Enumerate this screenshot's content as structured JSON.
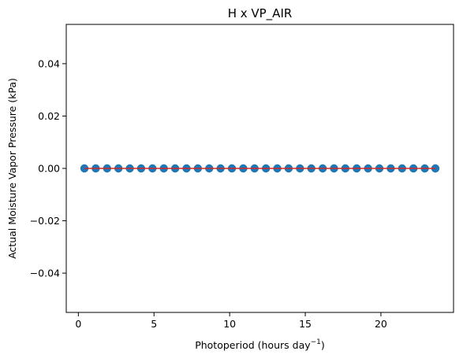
{
  "chart_data": {
    "type": "scatter",
    "title": "H x VP_AIR",
    "xlabel": "Photoperiod (hours day",
    "xlabel_superscript": "−1",
    "xlabel_suffix": ")",
    "ylabel": "Actual Moisture Vapor Pressure (kPa)",
    "xlim": [
      -0.8,
      24.8
    ],
    "ylim": [
      -0.055,
      0.055
    ],
    "x_ticks": [
      0,
      5,
      10,
      15,
      20
    ],
    "x_tick_labels": [
      "0",
      "5",
      "10",
      "15",
      "20"
    ],
    "y_ticks": [
      -0.04,
      -0.02,
      0.0,
      0.02,
      0.04
    ],
    "y_tick_labels": [
      "−0.04",
      "−0.02",
      "0.00",
      "0.02",
      "0.04"
    ],
    "grid": false,
    "series": [
      {
        "kind": "scatter",
        "x": [
          0.4,
          1.15,
          1.9,
          2.65,
          3.4,
          4.15,
          4.9,
          5.65,
          6.4,
          7.15,
          7.9,
          8.65,
          9.4,
          10.15,
          10.9,
          11.65,
          12.4,
          13.15,
          13.9,
          14.65,
          15.4,
          16.15,
          16.9,
          17.65,
          18.4,
          19.15,
          19.9,
          20.65,
          21.4,
          22.15,
          22.9,
          23.6
        ],
        "y": [
          0,
          0,
          0,
          0,
          0,
          0,
          0,
          0,
          0,
          0,
          0,
          0,
          0,
          0,
          0,
          0,
          0,
          0,
          0,
          0,
          0,
          0,
          0,
          0,
          0,
          0,
          0,
          0,
          0,
          0,
          0,
          0
        ],
        "color": "#1f77b4"
      },
      {
        "kind": "line",
        "x": [
          0.4,
          23.6
        ],
        "y": [
          0,
          0
        ],
        "color": "#d62728"
      }
    ]
  }
}
